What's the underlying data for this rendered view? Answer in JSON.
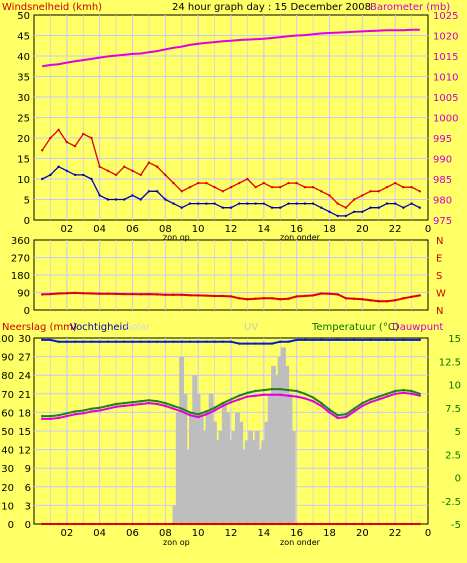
{
  "header": {
    "left_label": "Windsnelheid (kmh)",
    "center_title": "24 hour graph day : 15 December 2008",
    "right_label": "Barometer (mb)"
  },
  "panel3_header": {
    "left1": "Neerslag (mm)",
    "left2": "Vochtigheid",
    "left3": "Solar",
    "center": "UV",
    "right1": "Temperatuur (°C)",
    "right2": "Dauwpunt"
  },
  "colors": {
    "background": "#FFFF66",
    "plot_bg": "#FFFF66",
    "grid": "#C8C8FF",
    "wind_gust": "#E00000",
    "wind_avg": "#0000B0",
    "barometer": "#E000E0",
    "wind_dir": "#E00000",
    "humidity": "#0020C0",
    "solar": "#BEBEBE",
    "temperature": "#208020",
    "dewpoint": "#E000E0",
    "rain": "#E00000",
    "label_red": "#CC0000",
    "label_magenta": "#CC00CC",
    "label_green": "#007700"
  },
  "x_ticks": [
    "02",
    "04",
    "06",
    "08",
    "10",
    "12",
    "14",
    "16",
    "18",
    "20",
    "22",
    "0"
  ],
  "x_markers": {
    "sunrise": "zon op",
    "sunset": "zon onder"
  },
  "panel1": {
    "wind_ticks": [
      "0",
      "5",
      "10",
      "15",
      "20",
      "25",
      "30",
      "35",
      "40",
      "45",
      "50"
    ],
    "baro_ticks": [
      "975",
      "980",
      "985",
      "990",
      "995",
      "1000",
      "1005",
      "1010",
      "1015",
      "1020",
      "1025"
    ]
  },
  "panel2": {
    "dir_ticks": [
      "0",
      "90",
      "180",
      "270",
      "360"
    ],
    "dir_letters": [
      "N",
      "W",
      "S",
      "E",
      "N"
    ]
  },
  "panel3": {
    "left_ticks": [
      "0",
      "10",
      "20",
      "30",
      "40",
      "50",
      "60",
      "70",
      "80",
      "90",
      "100"
    ],
    "left2_ticks": [
      "0",
      "3",
      "6",
      "9",
      "12",
      "15",
      "18",
      "21",
      "24",
      "27",
      "30"
    ],
    "right_ticks": [
      "-5",
      "-2.5",
      "0",
      "2.5",
      "5",
      "7.5",
      "10",
      "12.5",
      "15"
    ]
  },
  "chart_data": [
    {
      "type": "line",
      "title": "24 hour graph day : 15 December 2008",
      "xlabel": "",
      "x": [
        0.5,
        1,
        1.5,
        2,
        2.5,
        3,
        3.5,
        4,
        4.5,
        5,
        5.5,
        6,
        6.5,
        7,
        7.5,
        8,
        8.5,
        9,
        9.5,
        10,
        10.5,
        11,
        11.5,
        12,
        12.5,
        13,
        13.5,
        14,
        14.5,
        15,
        15.5,
        16,
        16.5,
        17,
        17.5,
        18,
        18.5,
        19,
        19.5,
        20,
        20.5,
        21,
        21.5,
        22,
        22.5,
        23,
        23.5
      ],
      "series": [
        {
          "name": "Windsnelheid (kmh)",
          "axis": "left",
          "ylim": [
            0,
            50
          ],
          "values": [
            17,
            20,
            22,
            19,
            18,
            21,
            20,
            13,
            12,
            11,
            13,
            12,
            11,
            14,
            13,
            11,
            9,
            7,
            8,
            9,
            9,
            8,
            7,
            8,
            9,
            10,
            8,
            9,
            8,
            8,
            9,
            9,
            8,
            8,
            7,
            6,
            4,
            3,
            5,
            6,
            7,
            7,
            8,
            9,
            8,
            8,
            7
          ]
        },
        {
          "name": "",
          "axis": "left",
          "ylim": [
            0,
            50
          ],
          "values": [
            10,
            11,
            13,
            12,
            11,
            11,
            10,
            6,
            5,
            5,
            5,
            6,
            5,
            7,
            7,
            5,
            4,
            3,
            4,
            4,
            4,
            4,
            3,
            3,
            4,
            4,
            4,
            4,
            3,
            3,
            4,
            4,
            4,
            4,
            3,
            2,
            1,
            1,
            2,
            2,
            3,
            3,
            4,
            4,
            3,
            4,
            3
          ]
        },
        {
          "name": "Barometer (mb)",
          "axis": "right",
          "ylim": [
            975,
            1025
          ],
          "values": [
            1012.5,
            1012.8,
            1013.0,
            1013.4,
            1013.7,
            1014.0,
            1014.3,
            1014.6,
            1014.9,
            1015.1,
            1015.3,
            1015.5,
            1015.6,
            1015.9,
            1016.2,
            1016.6,
            1017.0,
            1017.3,
            1017.7,
            1018.0,
            1018.2,
            1018.4,
            1018.6,
            1018.7,
            1018.9,
            1019.0,
            1019.1,
            1019.2,
            1019.4,
            1019.6,
            1019.8,
            1020.0,
            1020.1,
            1020.3,
            1020.5,
            1020.6,
            1020.7,
            1020.8,
            1020.9,
            1021.0,
            1021.1,
            1021.2,
            1021.3,
            1021.3,
            1021.3,
            1021.4,
            1021.4
          ]
        }
      ]
    },
    {
      "type": "line",
      "title": "",
      "x": [
        0.5,
        1,
        1.5,
        2,
        2.5,
        3,
        3.5,
        4,
        4.5,
        5,
        5.5,
        6,
        6.5,
        7,
        7.5,
        8,
        8.5,
        9,
        9.5,
        10,
        10.5,
        11,
        11.5,
        12,
        12.5,
        13,
        13.5,
        14,
        14.5,
        15,
        15.5,
        16,
        16.5,
        17,
        17.5,
        18,
        18.5,
        19,
        19.5,
        20,
        20.5,
        21,
        21.5,
        22,
        22.5,
        23,
        23.5
      ],
      "ylim": [
        0,
        360
      ],
      "series": [
        {
          "name": "",
          "values": [
            80,
            82,
            85,
            86,
            88,
            86,
            85,
            84,
            84,
            83,
            82,
            82,
            81,
            82,
            80,
            78,
            78,
            78,
            76,
            75,
            74,
            72,
            72,
            70,
            60,
            55,
            58,
            60,
            60,
            55,
            58,
            70,
            72,
            75,
            85,
            84,
            80,
            60,
            58,
            55,
            50,
            45,
            45,
            50,
            60,
            68,
            75
          ]
        }
      ]
    },
    {
      "type": "line",
      "title": "",
      "x": [
        0.5,
        1,
        1.5,
        2,
        2.5,
        3,
        3.5,
        4,
        4.5,
        5,
        5.5,
        6,
        6.5,
        7,
        7.5,
        8,
        8.5,
        9,
        9.5,
        10,
        10.5,
        11,
        11.5,
        12,
        12.5,
        13,
        13.5,
        14,
        14.5,
        15,
        15.5,
        16,
        16.5,
        17,
        17.5,
        18,
        18.5,
        19,
        19.5,
        20,
        20.5,
        21,
        21.5,
        22,
        22.5,
        23,
        23.5
      ],
      "series": [
        {
          "name": "Vochtigheid",
          "axis": "left",
          "ylim": [
            0,
            100
          ],
          "values": [
            99,
            99,
            98,
            98,
            98,
            98,
            98,
            98,
            98,
            98,
            98,
            98,
            98,
            98,
            98,
            98,
            98,
            98,
            98,
            98,
            98,
            98,
            98,
            98,
            97,
            97,
            97,
            97,
            97,
            98,
            98,
            99,
            99,
            99,
            99,
            99,
            99,
            99,
            99,
            99,
            99,
            99,
            99,
            99,
            99,
            99,
            99
          ]
        },
        {
          "name": "Temperatuur (°C)",
          "axis": "right",
          "ylim": [
            -5,
            15
          ],
          "values": [
            6.6,
            6.6,
            6.7,
            6.9,
            7.1,
            7.2,
            7.4,
            7.5,
            7.7,
            7.9,
            8.0,
            8.1,
            8.2,
            8.3,
            8.2,
            8.0,
            7.7,
            7.4,
            7.0,
            6.8,
            7.1,
            7.5,
            8.0,
            8.4,
            8.8,
            9.1,
            9.3,
            9.4,
            9.5,
            9.5,
            9.4,
            9.3,
            9.0,
            8.6,
            8.0,
            7.3,
            6.7,
            6.8,
            7.4,
            8.0,
            8.4,
            8.7,
            9.0,
            9.3,
            9.4,
            9.3,
            9.0
          ]
        },
        {
          "name": "Dauwpunt",
          "axis": "right",
          "ylim": [
            -5,
            15
          ],
          "values": [
            6.3,
            6.3,
            6.4,
            6.6,
            6.8,
            6.9,
            7.1,
            7.2,
            7.4,
            7.6,
            7.7,
            7.8,
            7.9,
            8.0,
            7.9,
            7.7,
            7.4,
            7.1,
            6.7,
            6.5,
            6.8,
            7.2,
            7.7,
            8.1,
            8.4,
            8.7,
            8.8,
            8.9,
            8.9,
            8.9,
            8.8,
            8.7,
            8.5,
            8.2,
            7.7,
            7.0,
            6.4,
            6.5,
            7.1,
            7.7,
            8.1,
            8.4,
            8.7,
            9.0,
            9.1,
            9.0,
            8.8
          ]
        },
        {
          "name": "Neerslag (mm)",
          "axis": "left",
          "ylim": [
            0,
            100
          ],
          "values": [
            0,
            0,
            0,
            0,
            0,
            0,
            0,
            0,
            0,
            0,
            0,
            0,
            0,
            0,
            0,
            0,
            0,
            0,
            0,
            0,
            0,
            0,
            0,
            0,
            0,
            0,
            0,
            0,
            0,
            0,
            0,
            0,
            0,
            0,
            0,
            0,
            0,
            0,
            0,
            0,
            0,
            0,
            0,
            0,
            0,
            0,
            0
          ]
        }
      ]
    },
    {
      "type": "bar",
      "title": "",
      "x": [
        8.6,
        8.8,
        9.0,
        9.2,
        9.4,
        9.6,
        9.8,
        10.0,
        10.2,
        10.4,
        10.6,
        10.8,
        11.0,
        11.2,
        11.4,
        11.6,
        11.8,
        12.0,
        12.2,
        12.4,
        12.6,
        12.8,
        13.0,
        13.2,
        13.4,
        13.6,
        13.8,
        14.0,
        14.2,
        14.4,
        14.6,
        14.8,
        15.0,
        15.2,
        15.4,
        15.6,
        15.8
      ],
      "ylim": [
        0,
        100
      ],
      "series": [
        {
          "name": "Solar",
          "values": [
            10,
            60,
            90,
            70,
            40,
            60,
            80,
            70,
            60,
            50,
            60,
            70,
            55,
            45,
            50,
            65,
            60,
            45,
            50,
            60,
            55,
            40,
            45,
            50,
            45,
            50,
            40,
            45,
            55,
            70,
            85,
            80,
            90,
            95,
            85,
            70,
            50
          ]
        }
      ]
    }
  ]
}
